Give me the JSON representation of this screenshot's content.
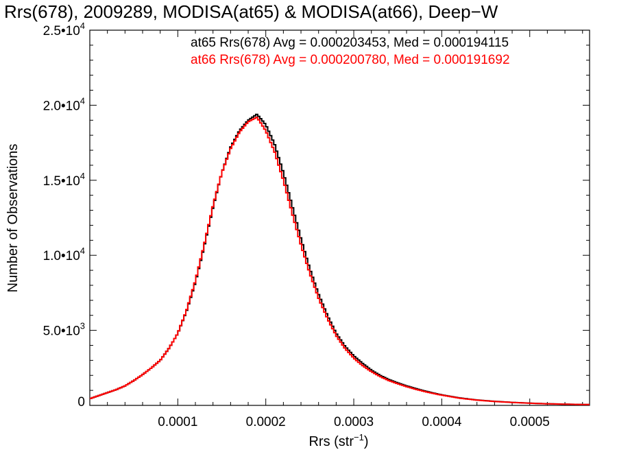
{
  "chart_data": {
    "type": "histogram",
    "title": "Rrs(678), 2009289, MODISA(at65) & MODISA(at66), Deep−W",
    "xlabel_main": "Rrs (str",
    "xlabel_sup": "−1",
    "xlabel_close": ")",
    "ylabel": "Number of Observations",
    "xlim": [
      0.0,
      0.000568
    ],
    "ylim": [
      0,
      25000
    ],
    "x_ticks": [
      {
        "value": 0.0001,
        "label": "0.0001"
      },
      {
        "value": 0.0002,
        "label": "0.0002"
      },
      {
        "value": 0.0003,
        "label": "0.0003"
      },
      {
        "value": 0.0004,
        "label": "0.0004"
      },
      {
        "value": 0.0005,
        "label": "0.0005"
      }
    ],
    "y_ticks": [
      {
        "value": 0,
        "mant": "0",
        "exp": ""
      },
      {
        "value": 5000,
        "mant": "5.0•10",
        "exp": "3"
      },
      {
        "value": 10000,
        "mant": "1.0•10",
        "exp": "4"
      },
      {
        "value": 15000,
        "mant": "1.5•10",
        "exp": "4"
      },
      {
        "value": 20000,
        "mant": "2.0•10",
        "exp": "4"
      },
      {
        "value": 25000,
        "mant": "2.5•10",
        "exp": "4"
      }
    ],
    "series": [
      {
        "name": "at65",
        "legend": "at65 Rrs(678) Avg = 0.000203453, Med = 0.000194115",
        "color": "#000000",
        "curve": [
          [
            0.0,
            450
          ],
          [
            1e-05,
            650
          ],
          [
            2e-05,
            850
          ],
          [
            3e-05,
            1050
          ],
          [
            4e-05,
            1300
          ],
          [
            5e-05,
            1650
          ],
          [
            6e-05,
            2050
          ],
          [
            7e-05,
            2500
          ],
          [
            8e-05,
            3000
          ],
          [
            9e-05,
            3800
          ],
          [
            0.0001,
            4800
          ],
          [
            0.00011,
            6300
          ],
          [
            0.00012,
            8200
          ],
          [
            0.00013,
            10600
          ],
          [
            0.00014,
            13200
          ],
          [
            0.00015,
            15500
          ],
          [
            0.00016,
            17200
          ],
          [
            0.00017,
            18300
          ],
          [
            0.00018,
            19000
          ],
          [
            0.00019,
            19400
          ],
          [
            0.0002,
            18700
          ],
          [
            0.00021,
            17400
          ],
          [
            0.00022,
            15500
          ],
          [
            0.00023,
            13300
          ],
          [
            0.00024,
            11100
          ],
          [
            0.00025,
            9100
          ],
          [
            0.00026,
            7400
          ],
          [
            0.00027,
            6000
          ],
          [
            0.00028,
            4800
          ],
          [
            0.00029,
            3950
          ],
          [
            0.0003,
            3300
          ],
          [
            0.00031,
            2800
          ],
          [
            0.00032,
            2350
          ],
          [
            0.00033,
            2000
          ],
          [
            0.00034,
            1720
          ],
          [
            0.00035,
            1500
          ],
          [
            0.00036,
            1300
          ],
          [
            0.00037,
            1130
          ],
          [
            0.00038,
            970
          ],
          [
            0.00039,
            830
          ],
          [
            0.0004,
            700
          ],
          [
            0.00042,
            500
          ],
          [
            0.00044,
            360
          ],
          [
            0.00046,
            270
          ],
          [
            0.00048,
            200
          ],
          [
            0.0005,
            150
          ],
          [
            0.00052,
            110
          ],
          [
            0.00054,
            80
          ],
          [
            0.00056,
            60
          ],
          [
            0.000568,
            55
          ]
        ]
      },
      {
        "name": "at66",
        "legend": "at66 Rrs(678) Avg = 0.000200780, Med = 0.000191692",
        "color": "#ff0000",
        "curve": [
          [
            0.0,
            450
          ],
          [
            1e-05,
            650
          ],
          [
            2e-05,
            850
          ],
          [
            3e-05,
            1050
          ],
          [
            4e-05,
            1300
          ],
          [
            5e-05,
            1650
          ],
          [
            6e-05,
            2050
          ],
          [
            7e-05,
            2500
          ],
          [
            8e-05,
            3000
          ],
          [
            9e-05,
            3800
          ],
          [
            0.0001,
            4800
          ],
          [
            0.00011,
            6350
          ],
          [
            0.00012,
            8300
          ],
          [
            0.00013,
            10700
          ],
          [
            0.00014,
            13300
          ],
          [
            0.00015,
            15500
          ],
          [
            0.00016,
            17100
          ],
          [
            0.00017,
            18200
          ],
          [
            0.00018,
            18900
          ],
          [
            0.00019,
            19200
          ],
          [
            0.0002,
            18300
          ],
          [
            0.00021,
            16900
          ],
          [
            0.00022,
            15000
          ],
          [
            0.00023,
            12800
          ],
          [
            0.00024,
            10700
          ],
          [
            0.00025,
            8800
          ],
          [
            0.00026,
            7150
          ],
          [
            0.00027,
            5800
          ],
          [
            0.00028,
            4650
          ],
          [
            0.00029,
            3800
          ],
          [
            0.0003,
            3150
          ],
          [
            0.00031,
            2650
          ],
          [
            0.00032,
            2250
          ],
          [
            0.00033,
            1920
          ],
          [
            0.00034,
            1650
          ],
          [
            0.00035,
            1440
          ],
          [
            0.00036,
            1250
          ],
          [
            0.00037,
            1080
          ],
          [
            0.00038,
            930
          ],
          [
            0.00039,
            800
          ],
          [
            0.0004,
            680
          ],
          [
            0.00042,
            480
          ],
          [
            0.00044,
            350
          ],
          [
            0.00046,
            260
          ],
          [
            0.00048,
            195
          ],
          [
            0.0005,
            145
          ],
          [
            0.00052,
            105
          ],
          [
            0.00054,
            78
          ],
          [
            0.00056,
            58
          ],
          [
            0.000568,
            52
          ]
        ]
      }
    ]
  }
}
